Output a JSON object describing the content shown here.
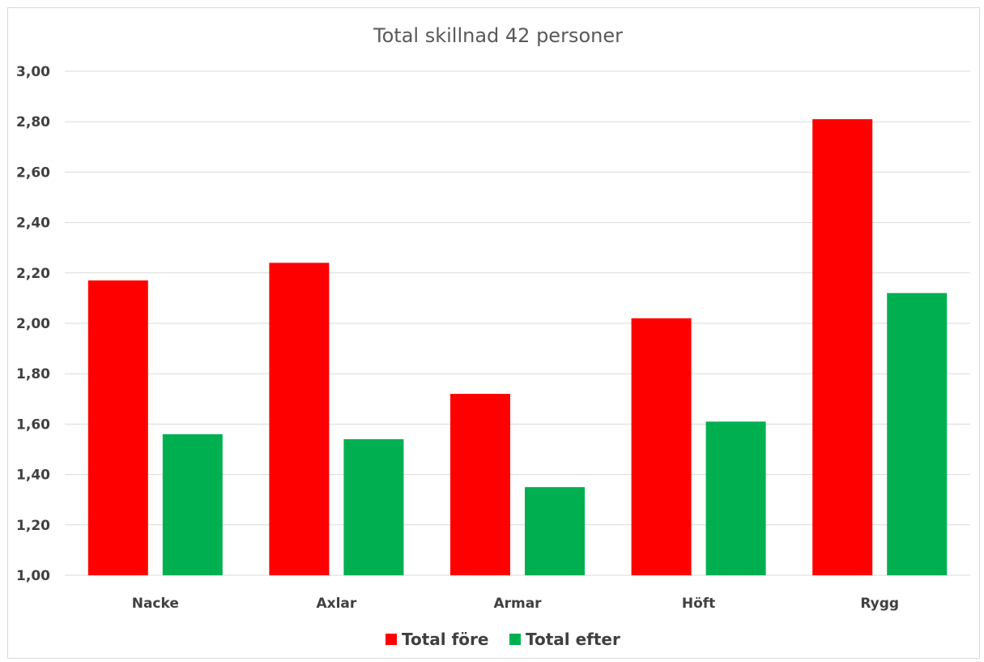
{
  "chart_data": {
    "type": "bar",
    "title": "Total skillnad 42 personer",
    "xlabel": "",
    "ylabel": "",
    "categories": [
      "Nacke",
      "Axlar",
      "Armar",
      "Höft",
      "Rygg"
    ],
    "series": [
      {
        "name": "Total före",
        "color": "#ff0000",
        "values": [
          2.17,
          2.24,
          1.72,
          2.02,
          2.81
        ]
      },
      {
        "name": "Total efter",
        "color": "#00b050",
        "values": [
          1.56,
          1.54,
          1.35,
          1.61,
          2.12
        ]
      }
    ],
    "ylim": [
      1.0,
      3.0
    ],
    "yticks": [
      "1,00",
      "1,20",
      "1,40",
      "1,60",
      "1,80",
      "2,00",
      "2,20",
      "2,40",
      "2,60",
      "2,80",
      "3,00"
    ],
    "grid": true,
    "legend_position": "bottom"
  }
}
